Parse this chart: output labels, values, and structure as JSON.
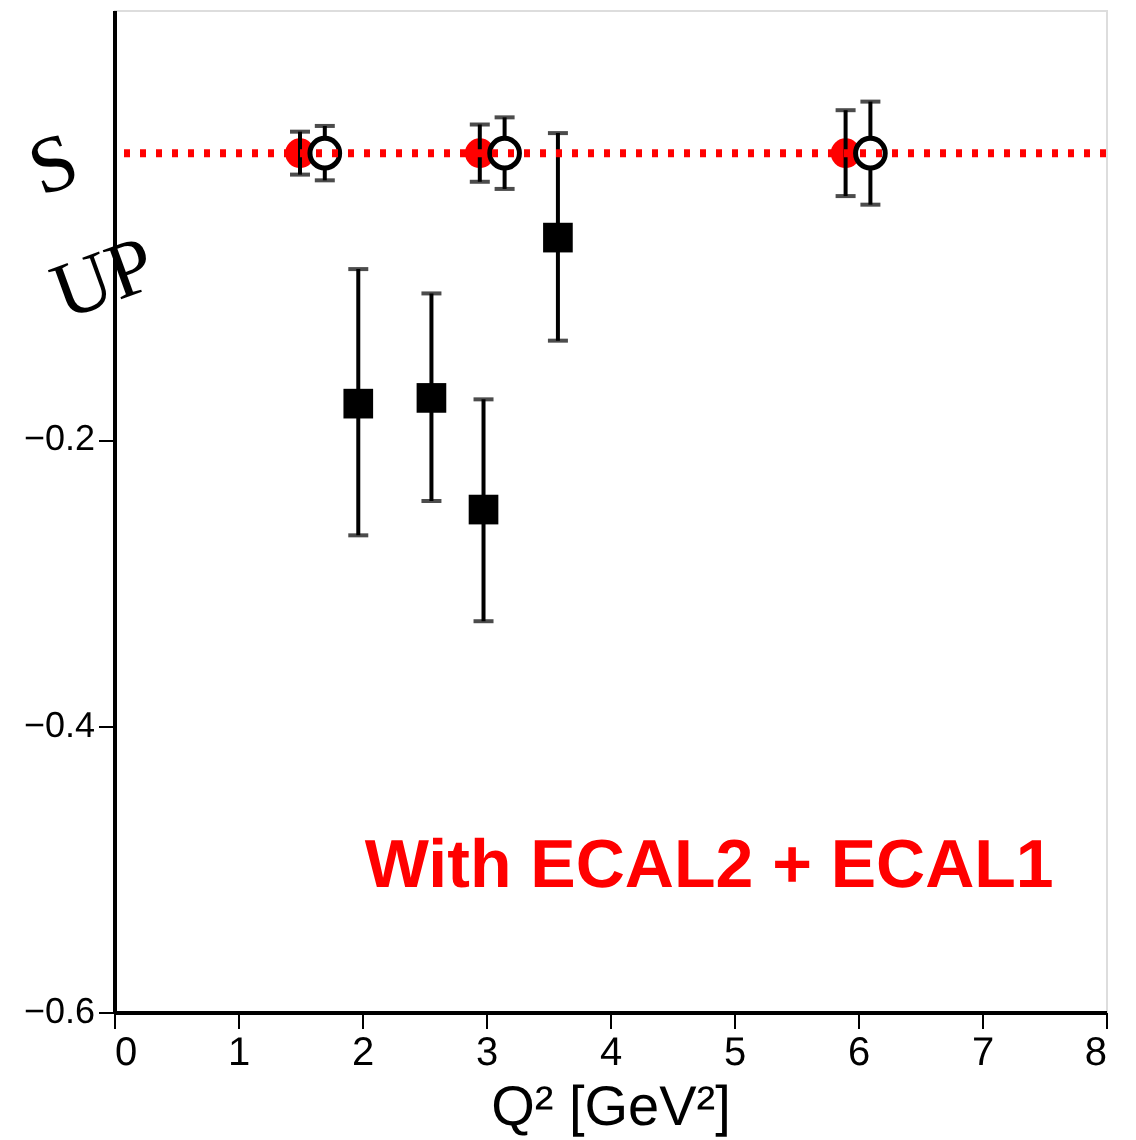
{
  "chart_data": {
    "type": "scatter",
    "xlabel": "Q² [GeV²]",
    "xlim": [
      0,
      8
    ],
    "xticks": [
      0,
      1,
      2,
      3,
      4,
      5,
      6,
      7,
      8
    ],
    "ylim": [
      -0.6,
      0.1
    ],
    "yticks": [
      -0.6,
      -0.4,
      -0.2
    ],
    "grid": false,
    "ref_lines": [
      {
        "axis": "y",
        "value": 0,
        "color": "#ff0000",
        "line_style": "dotted"
      }
    ],
    "annotations": [
      "With ECAL2 + ECAL1",
      "S",
      "UP"
    ],
    "series": [
      {
        "color": "#ff0000",
        "marker": "circle",
        "x": [
          1.5,
          2.95,
          5.9
        ],
        "values": [
          0,
          0,
          0
        ],
        "errors": [
          0.015,
          0.02,
          0.03
        ]
      },
      {
        "color": "#000000",
        "marker": "circle",
        "x": [
          1.7,
          3.15,
          6.1
        ],
        "values": [
          0,
          0,
          0
        ],
        "errors": [
          0.019,
          0.025,
          0.036
        ]
      },
      {
        "color": "#000000",
        "marker": "square",
        "x": [
          1.97,
          2.56,
          2.98,
          3.58
        ],
        "values": [
          -0.175,
          -0.171,
          -0.249,
          -0.059
        ],
        "errors": [
          [
            -0.267,
            -0.081
          ],
          [
            -0.243,
            -0.098
          ],
          [
            -0.327,
            -0.172
          ],
          [
            -0.131,
            0.014
          ]
        ]
      }
    ]
  }
}
